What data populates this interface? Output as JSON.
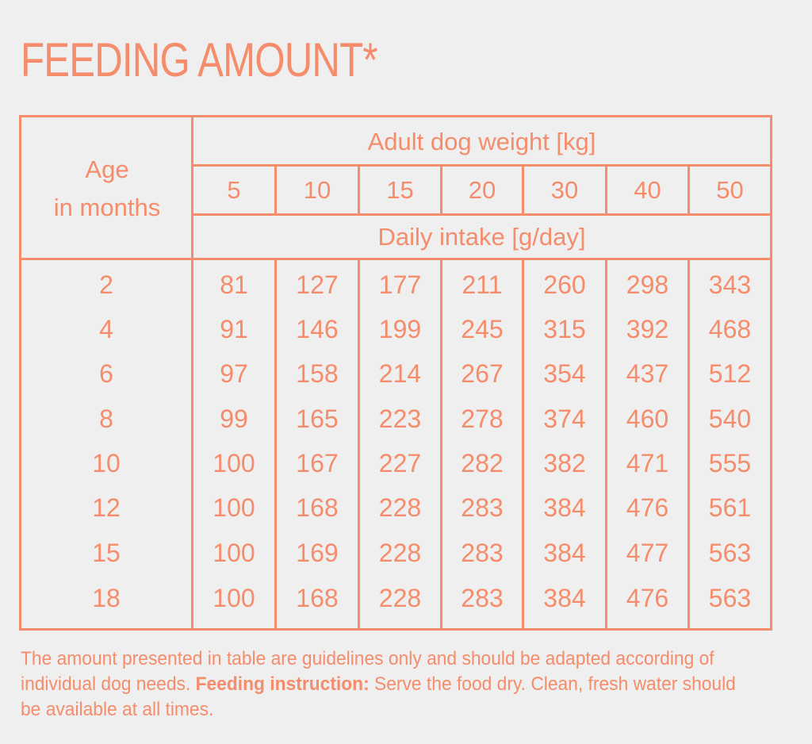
{
  "title": "FEEDING AMOUNT*",
  "table": {
    "age_header_line1": "Age",
    "age_header_line2": "in months",
    "weight_header": "Adult dog weight [kg]",
    "intake_header": "Daily intake [g/day]",
    "weights": [
      "5",
      "10",
      "15",
      "20",
      "30",
      "40",
      "50"
    ],
    "rows": [
      {
        "age": "2",
        "values": [
          "81",
          "127",
          "177",
          "211",
          "260",
          "298",
          "343"
        ]
      },
      {
        "age": "4",
        "values": [
          "91",
          "146",
          "199",
          "245",
          "315",
          "392",
          "468"
        ]
      },
      {
        "age": "6",
        "values": [
          "97",
          "158",
          "214",
          "267",
          "354",
          "437",
          "512"
        ]
      },
      {
        "age": "8",
        "values": [
          "99",
          "165",
          "223",
          "278",
          "374",
          "460",
          "540"
        ]
      },
      {
        "age": "10",
        "values": [
          "100",
          "167",
          "227",
          "282",
          "382",
          "471",
          "555"
        ]
      },
      {
        "age": "12",
        "values": [
          "100",
          "168",
          "228",
          "283",
          "384",
          "476",
          "561"
        ]
      },
      {
        "age": "15",
        "values": [
          "100",
          "169",
          "228",
          "283",
          "384",
          "477",
          "563"
        ]
      },
      {
        "age": "18",
        "values": [
          "100",
          "168",
          "228",
          "283",
          "384",
          "476",
          "563"
        ]
      }
    ]
  },
  "note": {
    "part1": "The amount presented in table are guidelines only and should be adapted according of individual dog needs. ",
    "bold": "Feeding instruction:",
    "part2": " Serve the food dry. Clean, fresh water should be available at all times."
  },
  "colors": {
    "accent": "#f58c6b",
    "background": "#efefef"
  }
}
